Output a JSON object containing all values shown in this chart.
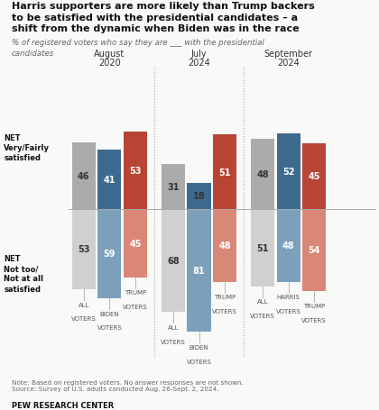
{
  "title_line1": "Harris supporters are more likely than Trump backers",
  "title_line2": "to be satisfied with the presidential candidates – a",
  "title_line3": "shift from the dynamic when Biden was in the race",
  "subtitle": "% of registered voters who say they are ___ with the presidential\ncandidates",
  "groups": [
    {
      "period": [
        "August",
        "2020"
      ],
      "bars": [
        {
          "label": [
            "ALL",
            "VOTERS"
          ],
          "color_sat": "#ababab",
          "color_unsat": "#d0d0d0",
          "sat": 46,
          "unsat": 53
        },
        {
          "label": [
            "BIDEN",
            "VOTERS"
          ],
          "color_sat": "#3d6b8f",
          "color_unsat": "#7ca0bb",
          "sat": 41,
          "unsat": 59
        },
        {
          "label": [
            "TRUMP",
            "VOTERS"
          ],
          "color_sat": "#b84433",
          "color_unsat": "#d98878",
          "sat": 53,
          "unsat": 45
        }
      ]
    },
    {
      "period": [
        "July",
        "2024"
      ],
      "bars": [
        {
          "label": [
            "ALL",
            "VOTERS"
          ],
          "color_sat": "#ababab",
          "color_unsat": "#d0d0d0",
          "sat": 31,
          "unsat": 68
        },
        {
          "label": [
            "BIDEN",
            "VOTERS"
          ],
          "color_sat": "#3d6b8f",
          "color_unsat": "#7ca0bb",
          "sat": 18,
          "unsat": 81
        },
        {
          "label": [
            "TRUMP",
            "VOTERS"
          ],
          "color_sat": "#b84433",
          "color_unsat": "#d98878",
          "sat": 51,
          "unsat": 48
        }
      ]
    },
    {
      "period": [
        "September",
        "2024"
      ],
      "bars": [
        {
          "label": [
            "ALL",
            "VOTERS"
          ],
          "color_sat": "#ababab",
          "color_unsat": "#d0d0d0",
          "sat": 48,
          "unsat": 51
        },
        {
          "label": [
            "HARRIS",
            "VOTERS"
          ],
          "color_sat": "#3d6b8f",
          "color_unsat": "#7ca0bb",
          "sat": 52,
          "unsat": 48
        },
        {
          "label": [
            "TRUMP",
            "VOTERS"
          ],
          "color_sat": "#b84433",
          "color_unsat": "#d98878",
          "sat": 45,
          "unsat": 54
        }
      ]
    }
  ],
  "net_sat_label": "NET\nVery/Fairly\nsatisfied",
  "net_unsat_label": "NET\nNot too/\nNot at all\nsatisfied",
  "note": "Note: Based on registered voters. No answer responses are not shown.\nSource: Survey of U.S. adults conducted Aug. 26-Sept. 2, 2024.",
  "source": "PEW RESEARCH CENTER",
  "bg_color": "#f9f9f7",
  "bar_label_color_dark": "#333333",
  "bar_label_color_light": "#ffffff"
}
